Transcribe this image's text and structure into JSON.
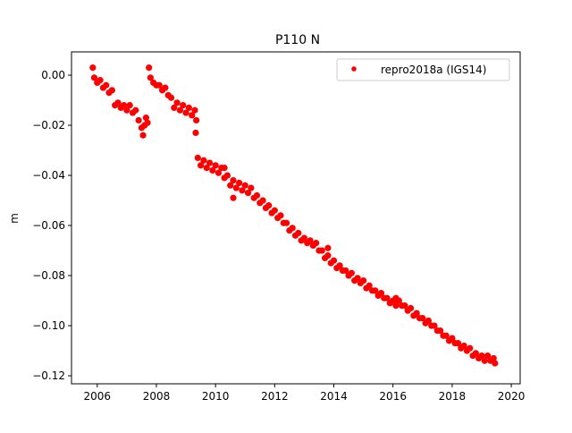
{
  "chart_data": {
    "type": "scatter",
    "title": "P110 N",
    "xlabel": "",
    "ylabel": "m",
    "xlim": [
      2005.13,
      2020.3
    ],
    "ylim": [
      -0.1232,
      0.0093
    ],
    "xticks": [
      2006,
      2008,
      2010,
      2012,
      2014,
      2016,
      2018,
      2020
    ],
    "xtick_labels": [
      "2006",
      "2008",
      "2010",
      "2012",
      "2014",
      "2016",
      "2018",
      "2020"
    ],
    "yticks": [
      0.0,
      -0.02,
      -0.04,
      -0.06,
      -0.08,
      -0.1,
      -0.12
    ],
    "ytick_labels": [
      "0.00",
      "−0.02",
      "−0.04",
      "−0.06",
      "−0.08",
      "−0.10",
      "−0.12"
    ],
    "grid": false,
    "legend_position": "top-right",
    "series": [
      {
        "name": "repro2018a (IGS14)",
        "color": "#ff0000",
        "marker": "dot",
        "points": [
          [
            2005.85,
            0.003
          ],
          [
            2005.9,
            -0.001
          ],
          [
            2006.0,
            -0.003
          ],
          [
            2006.1,
            -0.002
          ],
          [
            2006.2,
            -0.005
          ],
          [
            2006.3,
            -0.004
          ],
          [
            2006.4,
            -0.007
          ],
          [
            2006.5,
            -0.006
          ],
          [
            2006.6,
            -0.012
          ],
          [
            2006.7,
            -0.011
          ],
          [
            2006.8,
            -0.013
          ],
          [
            2006.9,
            -0.012
          ],
          [
            2007.0,
            -0.014
          ],
          [
            2007.1,
            -0.012
          ],
          [
            2007.2,
            -0.015
          ],
          [
            2007.3,
            -0.014
          ],
          [
            2007.4,
            -0.018
          ],
          [
            2007.5,
            -0.021
          ],
          [
            2007.55,
            -0.024
          ],
          [
            2007.6,
            -0.02
          ],
          [
            2007.65,
            -0.017
          ],
          [
            2007.7,
            -0.019
          ],
          [
            2007.75,
            0.003
          ],
          [
            2007.8,
            -0.001
          ],
          [
            2007.9,
            -0.003
          ],
          [
            2008.0,
            -0.004
          ],
          [
            2008.1,
            -0.004
          ],
          [
            2008.2,
            -0.006
          ],
          [
            2008.3,
            -0.005
          ],
          [
            2008.4,
            -0.008
          ],
          [
            2008.5,
            -0.009
          ],
          [
            2008.6,
            -0.013
          ],
          [
            2008.7,
            -0.011
          ],
          [
            2008.8,
            -0.014
          ],
          [
            2008.9,
            -0.012
          ],
          [
            2009.0,
            -0.015
          ],
          [
            2009.1,
            -0.013
          ],
          [
            2009.2,
            -0.016
          ],
          [
            2009.3,
            -0.014
          ],
          [
            2009.35,
            -0.018
          ],
          [
            2009.33,
            -0.023
          ],
          [
            2009.4,
            -0.033
          ],
          [
            2009.5,
            -0.036
          ],
          [
            2009.6,
            -0.034
          ],
          [
            2009.7,
            -0.037
          ],
          [
            2009.8,
            -0.035
          ],
          [
            2009.9,
            -0.038
          ],
          [
            2010.0,
            -0.036
          ],
          [
            2010.1,
            -0.039
          ],
          [
            2010.2,
            -0.037
          ],
          [
            2010.3,
            -0.041
          ],
          [
            2010.4,
            -0.04
          ],
          [
            2010.5,
            -0.044
          ],
          [
            2010.6,
            -0.042
          ],
          [
            2010.7,
            -0.045
          ],
          [
            2010.8,
            -0.043
          ],
          [
            2010.9,
            -0.046
          ],
          [
            2011.0,
            -0.044
          ],
          [
            2011.1,
            -0.047
          ],
          [
            2011.2,
            -0.045
          ],
          [
            2011.3,
            -0.049
          ],
          [
            2011.4,
            -0.048
          ],
          [
            2011.5,
            -0.051
          ],
          [
            2011.6,
            -0.05
          ],
          [
            2011.7,
            -0.053
          ],
          [
            2011.8,
            -0.052
          ],
          [
            2011.9,
            -0.055
          ],
          [
            2012.0,
            -0.054
          ],
          [
            2012.1,
            -0.057
          ],
          [
            2012.2,
            -0.056
          ],
          [
            2012.3,
            -0.059
          ],
          [
            2012.4,
            -0.059
          ],
          [
            2012.5,
            -0.062
          ],
          [
            2012.6,
            -0.061
          ],
          [
            2012.7,
            -0.064
          ],
          [
            2012.8,
            -0.063
          ],
          [
            2012.9,
            -0.066
          ],
          [
            2013.0,
            -0.065
          ],
          [
            2013.1,
            -0.067
          ],
          [
            2013.2,
            -0.066
          ],
          [
            2013.3,
            -0.068
          ],
          [
            2013.4,
            -0.067
          ],
          [
            2013.5,
            -0.07
          ],
          [
            2013.6,
            -0.07
          ],
          [
            2013.7,
            -0.073
          ],
          [
            2013.8,
            -0.072
          ],
          [
            2013.9,
            -0.075
          ],
          [
            2014.0,
            -0.074
          ],
          [
            2014.1,
            -0.077
          ],
          [
            2014.2,
            -0.076
          ],
          [
            2014.3,
            -0.078
          ],
          [
            2014.4,
            -0.078
          ],
          [
            2014.5,
            -0.08
          ],
          [
            2014.6,
            -0.079
          ],
          [
            2014.7,
            -0.082
          ],
          [
            2014.8,
            -0.081
          ],
          [
            2014.9,
            -0.083
          ],
          [
            2015.0,
            -0.082
          ],
          [
            2015.1,
            -0.085
          ],
          [
            2015.2,
            -0.084
          ],
          [
            2015.3,
            -0.086
          ],
          [
            2015.4,
            -0.086
          ],
          [
            2015.5,
            -0.088
          ],
          [
            2015.6,
            -0.087
          ],
          [
            2015.7,
            -0.089
          ],
          [
            2015.8,
            -0.089
          ],
          [
            2015.9,
            -0.091
          ],
          [
            2016.0,
            -0.09
          ],
          [
            2016.1,
            -0.092
          ],
          [
            2016.2,
            -0.09
          ],
          [
            2016.3,
            -0.092
          ],
          [
            2016.4,
            -0.092
          ],
          [
            2016.5,
            -0.094
          ],
          [
            2016.6,
            -0.093
          ],
          [
            2016.7,
            -0.096
          ],
          [
            2016.8,
            -0.095
          ],
          [
            2016.9,
            -0.097
          ],
          [
            2017.0,
            -0.097
          ],
          [
            2017.1,
            -0.099
          ],
          [
            2017.2,
            -0.098
          ],
          [
            2017.3,
            -0.1
          ],
          [
            2017.4,
            -0.1
          ],
          [
            2017.5,
            -0.102
          ],
          [
            2017.6,
            -0.102
          ],
          [
            2017.7,
            -0.104
          ],
          [
            2017.8,
            -0.104
          ],
          [
            2017.9,
            -0.106
          ],
          [
            2018.0,
            -0.105
          ],
          [
            2018.1,
            -0.107
          ],
          [
            2018.2,
            -0.107
          ],
          [
            2018.3,
            -0.109
          ],
          [
            2018.4,
            -0.108
          ],
          [
            2018.5,
            -0.11
          ],
          [
            2018.6,
            -0.109
          ],
          [
            2018.7,
            -0.112
          ],
          [
            2018.8,
            -0.111
          ],
          [
            2018.9,
            -0.113
          ],
          [
            2019.0,
            -0.112
          ],
          [
            2019.1,
            -0.114
          ],
          [
            2019.2,
            -0.112
          ],
          [
            2019.3,
            -0.114
          ],
          [
            2019.4,
            -0.113
          ],
          [
            2019.45,
            -0.115
          ],
          [
            2010.6,
            -0.049
          ],
          [
            2010.3,
            -0.037
          ],
          [
            2013.8,
            -0.069
          ],
          [
            2016.1,
            -0.089
          ]
        ]
      }
    ]
  }
}
